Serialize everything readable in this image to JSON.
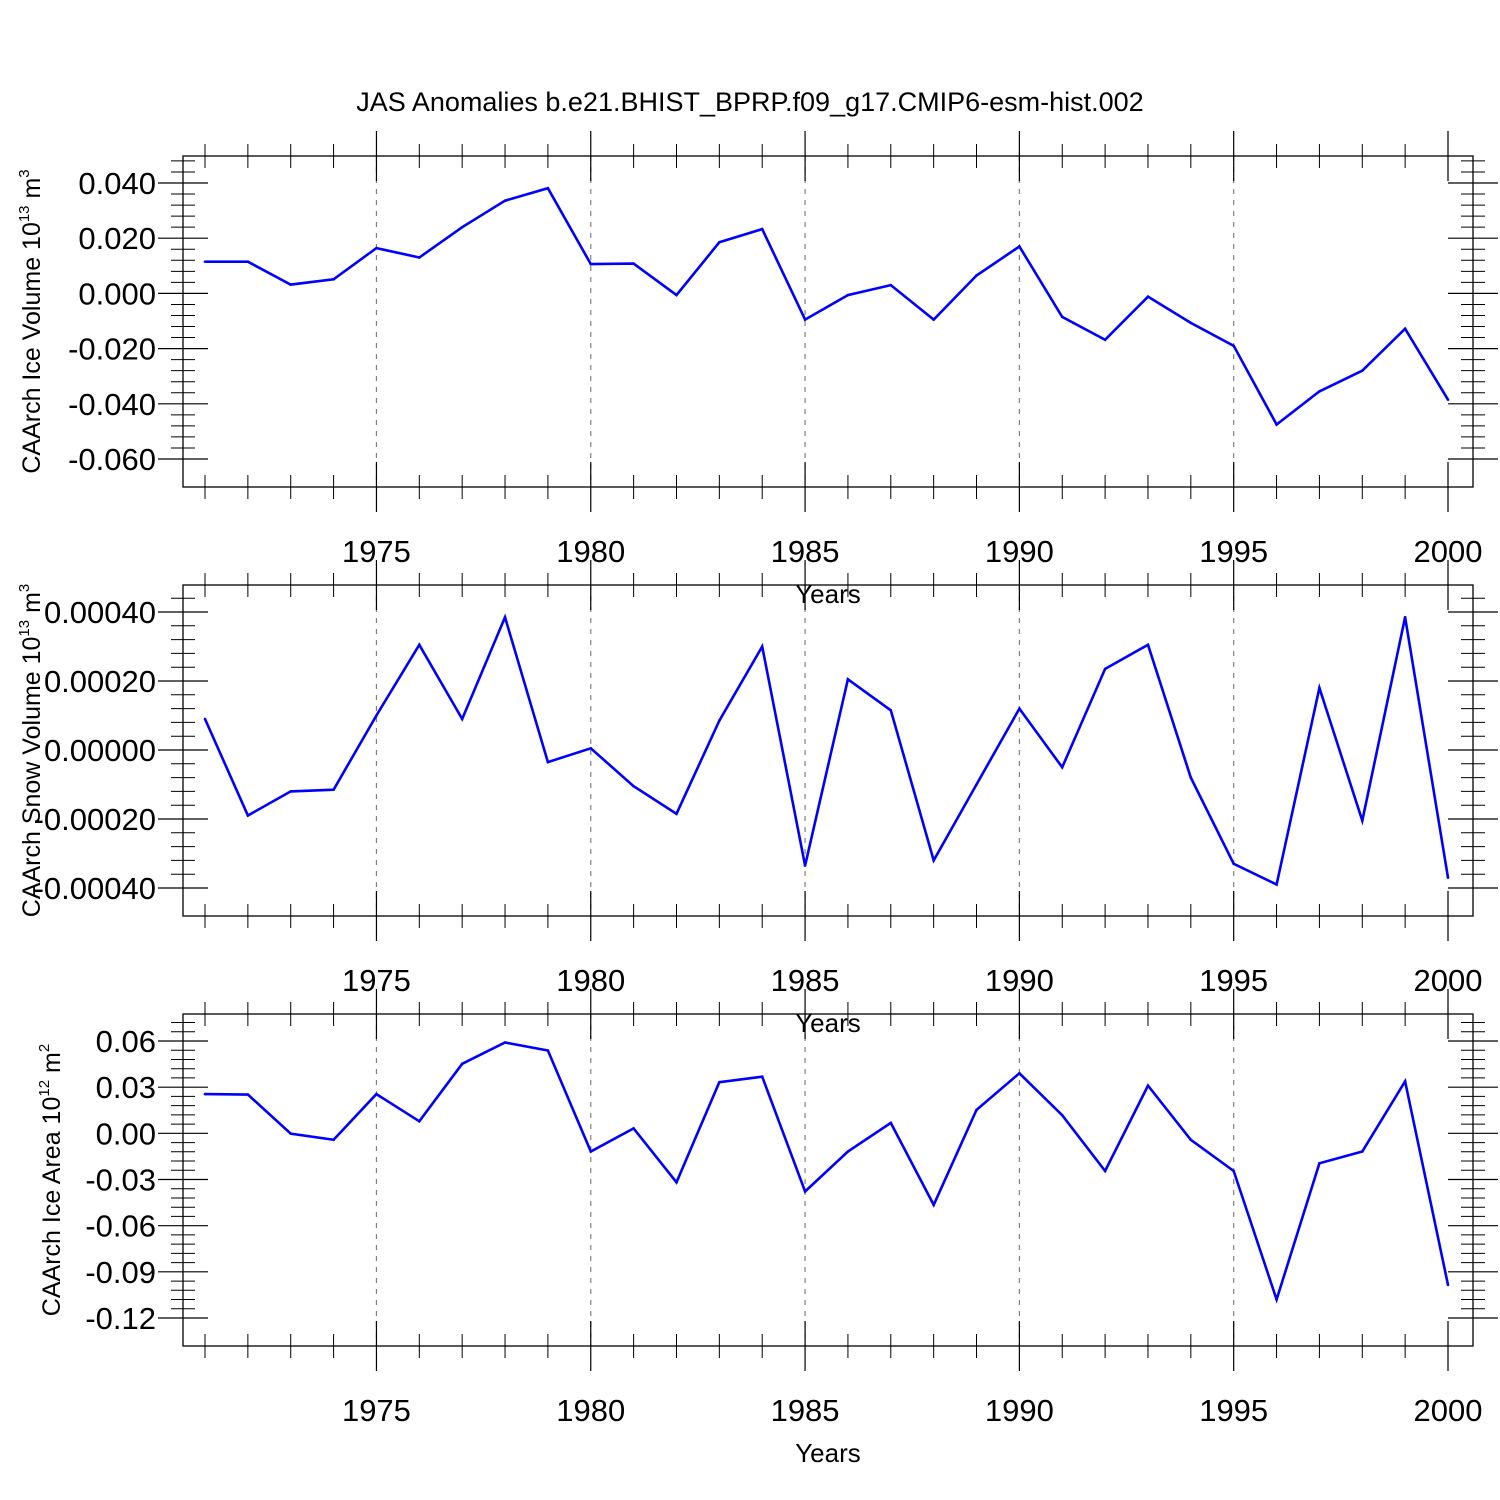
{
  "title": "JAS Anomalies b.e21.BHIST_BPRP.f09_g17.CMIP6-esm-hist.002",
  "colors": {
    "line": "#0000ff",
    "axis": "#000000",
    "grid": "#808080"
  },
  "chart_data": [
    {
      "type": "line",
      "xlabel": "Years",
      "ylabel": "CAArch Ice Volume 10",
      "ylabel_exp": "13",
      "ylabel_unit": " m",
      "ylabel_unit_exp": "3",
      "xlim": [
        1971,
        2000
      ],
      "ylim": [
        -0.06,
        0.045
      ],
      "yticks": [
        0.04,
        0.02,
        0.0,
        -0.02,
        -0.04,
        -0.06
      ],
      "ytick_labels": [
        "0.040",
        "0.020",
        "0.000",
        "-0.020",
        "-0.040",
        "-0.060"
      ],
      "xticks": [
        1975,
        1980,
        1985,
        1990,
        1995,
        2000
      ],
      "xtick_labels": [
        "1975",
        "1980",
        "1985",
        "1990",
        "1995",
        "2000"
      ],
      "grid": "vertical dashed at major x ticks",
      "x": [
        1971,
        1972,
        1973,
        1974,
        1975,
        1976,
        1977,
        1978,
        1979,
        1980,
        1981,
        1982,
        1983,
        1984,
        1985,
        1986,
        1987,
        1988,
        1989,
        1990,
        1991,
        1992,
        1993,
        1994,
        1995,
        1996,
        1997,
        1998,
        1999,
        2000
      ],
      "series": [
        {
          "values": [
            0.0115,
            0.0115,
            0.0032,
            0.0051,
            0.0164,
            0.013,
            0.024,
            0.0336,
            0.0381,
            0.0106,
            0.0108,
            -0.0006,
            0.0185,
            0.0233,
            -0.0095,
            -0.0006,
            0.003,
            -0.0095,
            0.0065,
            0.017,
            -0.0085,
            -0.0168,
            -0.0012,
            -0.0107,
            -0.019,
            -0.0475,
            -0.0355,
            -0.028,
            -0.0128,
            -0.0385
          ]
        }
      ]
    },
    {
      "type": "line",
      "xlabel": "Years",
      "ylabel": "CAArch Snow Volume 10",
      "ylabel_exp": "13",
      "ylabel_unit": " m",
      "ylabel_unit_exp": "3",
      "xlim": [
        1971,
        2000
      ],
      "ylim": [
        -0.0004,
        0.00045
      ],
      "yticks": [
        0.0004,
        0.0002,
        0.0,
        -0.0002,
        -0.0004
      ],
      "ytick_labels": [
        "0.00040",
        "0.00020",
        "0.00000",
        "-0.00020",
        "-0.00040"
      ],
      "xticks": [
        1975,
        1980,
        1985,
        1990,
        1995,
        2000
      ],
      "xtick_labels": [
        "1975",
        "1980",
        "1985",
        "1990",
        "1995",
        "2000"
      ],
      "grid": "vertical dashed at major x ticks",
      "x": [
        1971,
        1972,
        1973,
        1974,
        1975,
        1976,
        1977,
        1978,
        1979,
        1980,
        1981,
        1982,
        1983,
        1984,
        1985,
        1986,
        1987,
        1988,
        1989,
        1990,
        1991,
        1992,
        1993,
        1994,
        1995,
        1996,
        1997,
        1998,
        1999,
        2000
      ],
      "series": [
        {
          "values": [
            9e-05,
            -0.00019,
            -0.00012,
            -0.000115,
            0.0001,
            0.000305,
            9e-05,
            0.000385,
            -3.5e-05,
            5e-06,
            -0.000105,
            -0.000185,
            8.5e-05,
            0.0003,
            -0.000335,
            0.000205,
            0.000115,
            -0.00032,
            -0.0001,
            0.00012,
            -5e-05,
            0.000235,
            0.000305,
            -8e-05,
            -0.00033,
            -0.00039,
            0.00018,
            -0.000205,
            0.000385,
            -0.00037
          ]
        }
      ]
    },
    {
      "type": "line",
      "xlabel": "Years",
      "ylabel": "CAArch Ice Area 10",
      "ylabel_exp": "12",
      "ylabel_unit": " m",
      "ylabel_unit_exp": "2",
      "xlim": [
        1971,
        2000
      ],
      "ylim": [
        -0.12,
        0.07
      ],
      "yticks": [
        0.06,
        0.03,
        0.0,
        -0.03,
        -0.06,
        -0.09,
        -0.12
      ],
      "ytick_labels": [
        "0.06",
        "0.03",
        "0.00",
        "-0.03",
        "-0.06",
        "-0.09",
        "-0.12"
      ],
      "xticks": [
        1975,
        1980,
        1985,
        1990,
        1995,
        2000
      ],
      "xtick_labels": [
        "1975",
        "1980",
        "1985",
        "1990",
        "1995",
        "2000"
      ],
      "grid": "vertical dashed at major x ticks",
      "x": [
        1971,
        1972,
        1973,
        1974,
        1975,
        1976,
        1977,
        1978,
        1979,
        1980,
        1981,
        1982,
        1983,
        1984,
        1985,
        1986,
        1987,
        1988,
        1989,
        1990,
        1991,
        1992,
        1993,
        1994,
        1995,
        1996,
        1997,
        1998,
        1999,
        2000
      ],
      "series": [
        {
          "values": [
            0.0255,
            0.0252,
            -0.0002,
            -0.0042,
            0.0255,
            0.0078,
            0.0452,
            0.059,
            0.0538,
            -0.0118,
            0.0032,
            -0.0318,
            0.0332,
            0.0368,
            -0.0378,
            -0.0118,
            0.0068,
            -0.0465,
            0.0152,
            0.039,
            0.0118,
            -0.0245,
            0.031,
            -0.0042,
            -0.0245,
            -0.108,
            -0.0195,
            -0.0118,
            0.0338,
            -0.0985
          ]
        }
      ]
    }
  ]
}
